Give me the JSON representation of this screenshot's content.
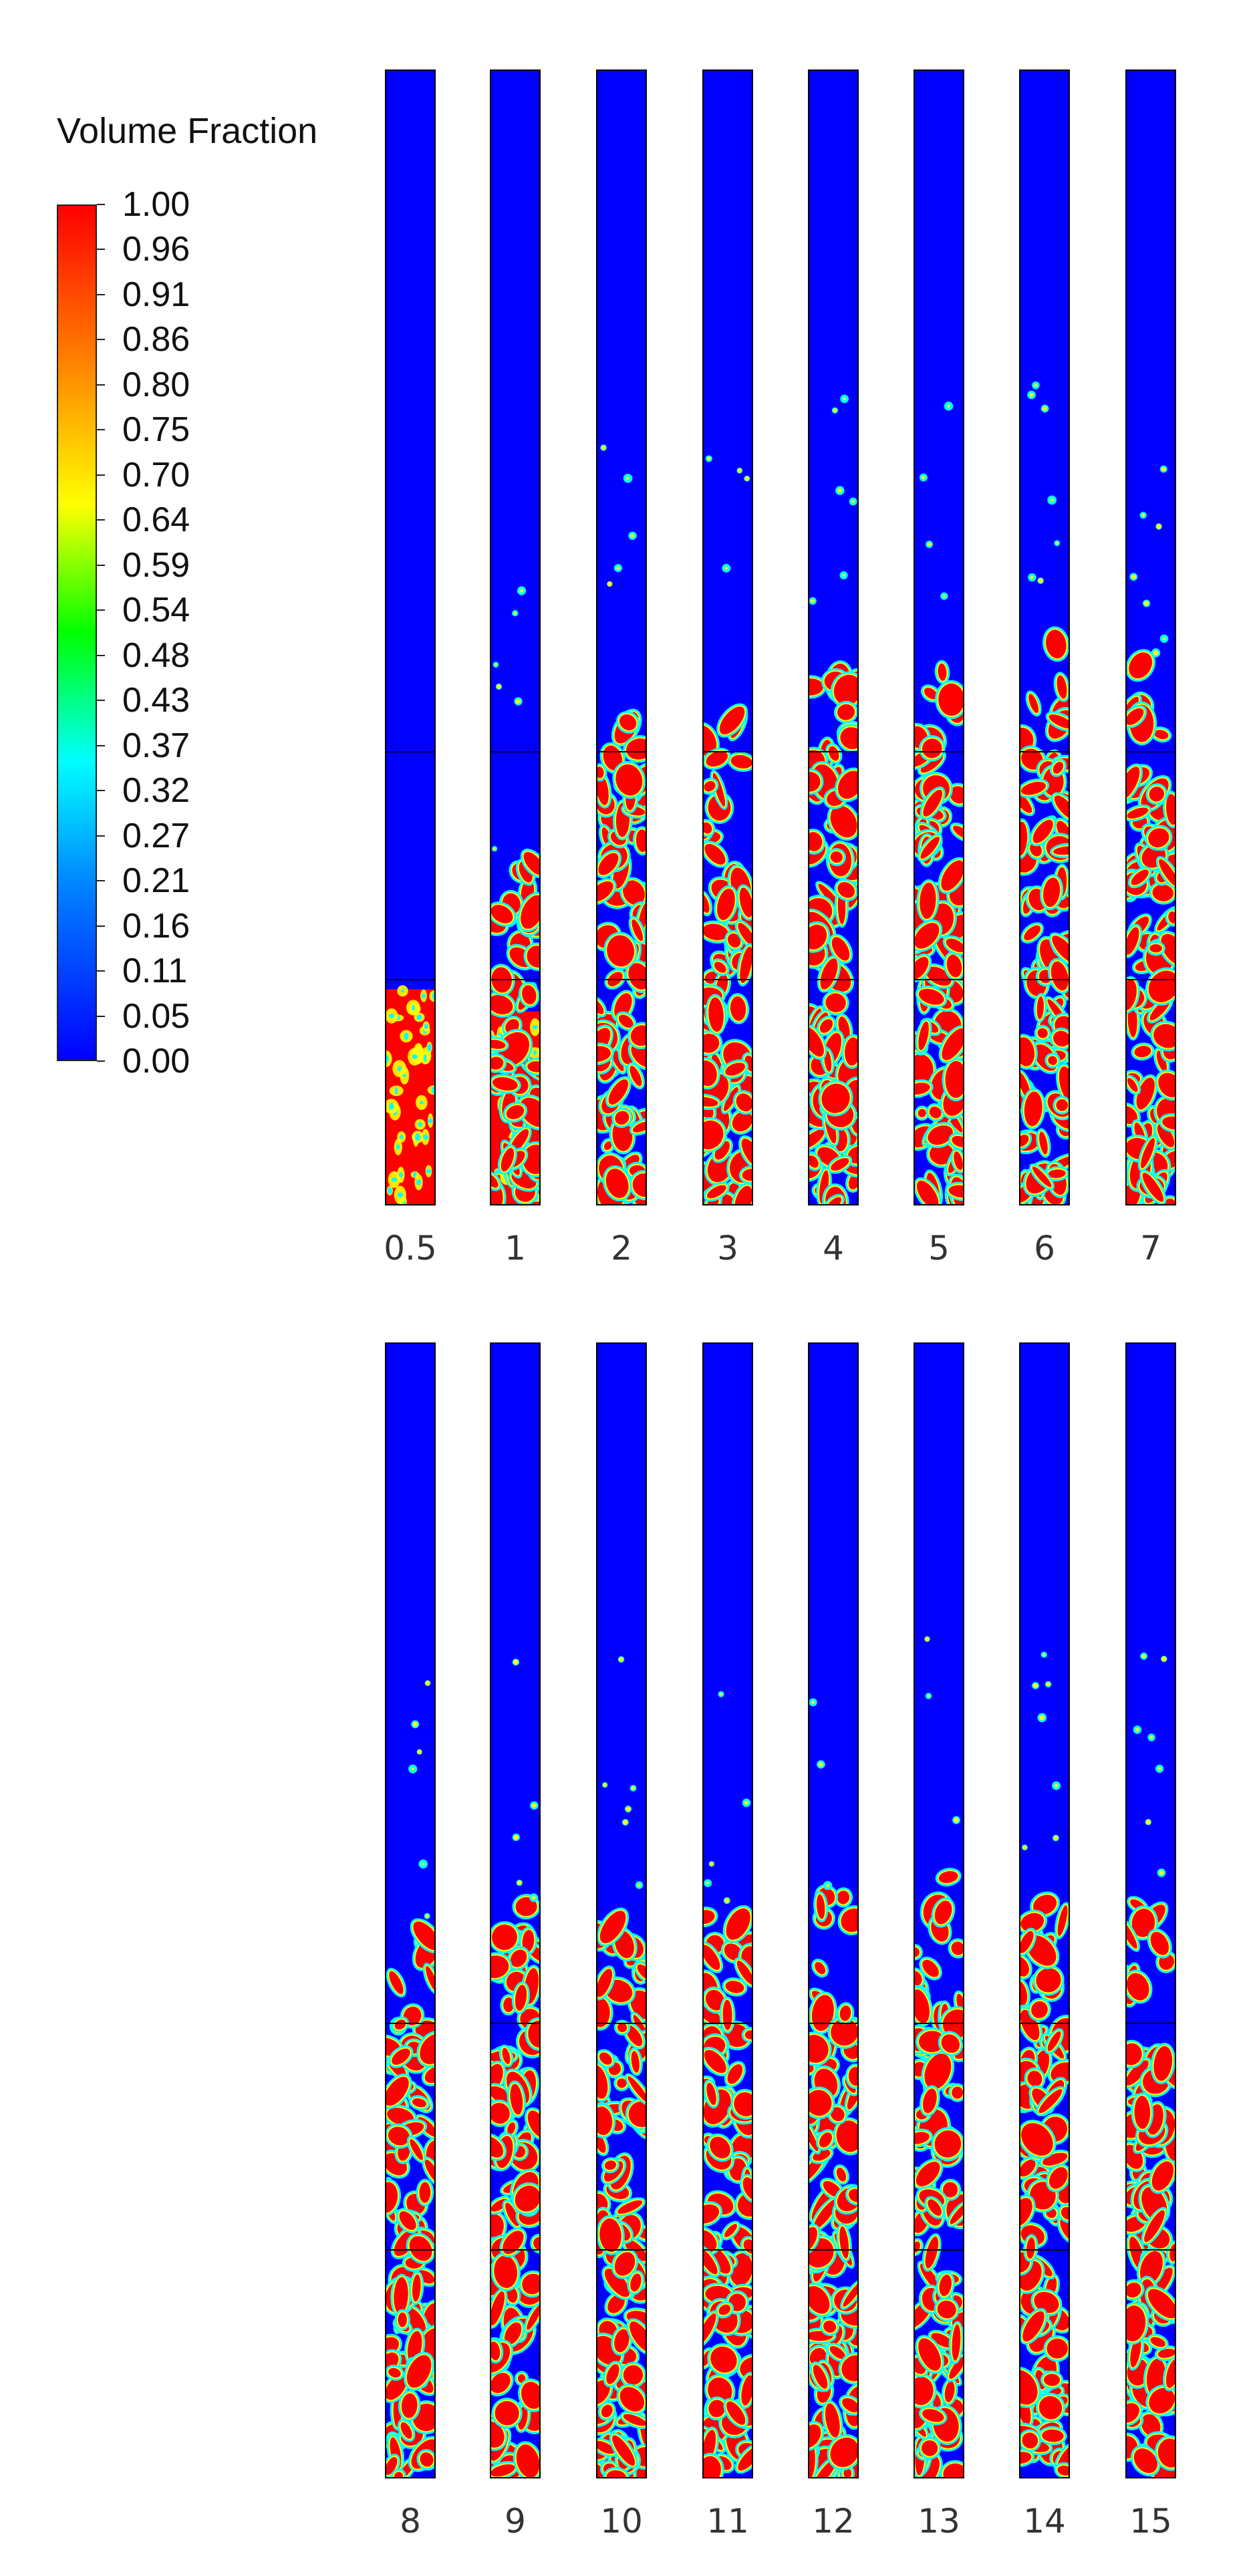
{
  "legend": {
    "title": "Volume Fraction",
    "ticks": [
      "1.00",
      "0.96",
      "0.91",
      "0.86",
      "0.80",
      "0.75",
      "0.70",
      "0.64",
      "0.59",
      "0.54",
      "0.48",
      "0.43",
      "0.37",
      "0.32",
      "0.27",
      "0.21",
      "0.16",
      "0.11",
      "0.05",
      "0.00"
    ],
    "colormap": [
      "#0000ff",
      "#0080ff",
      "#00ffff",
      "#00ff00",
      "#ffff00",
      "#ff8000",
      "#ff0000"
    ]
  },
  "rows": [
    {
      "labels": [
        "0.5",
        "1",
        "2",
        "3",
        "4",
        "5",
        "6",
        "7"
      ],
      "bed_fraction": [
        0.19,
        0.31,
        0.43,
        0.44,
        0.48,
        0.48,
        0.5,
        0.48
      ]
    },
    {
      "labels": [
        "8",
        "9",
        "10",
        "11",
        "12",
        "13",
        "14",
        "15"
      ],
      "bed_fraction": [
        0.49,
        0.51,
        0.52,
        0.5,
        0.52,
        0.53,
        0.51,
        0.51
      ]
    }
  ],
  "colors": {
    "background": "#0000ff",
    "solid": "#ff0000",
    "edge": "#ffff00",
    "mid": "#00ffff"
  }
}
